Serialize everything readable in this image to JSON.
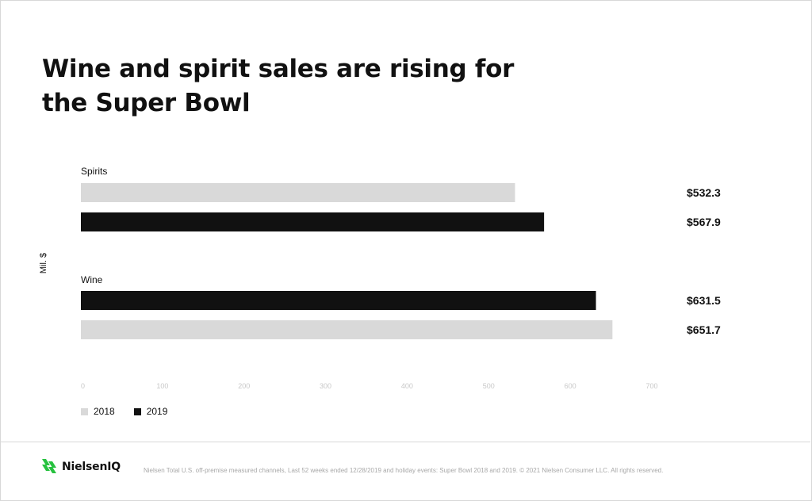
{
  "title": "Wine and spirit sales are rising for the Super Bowl",
  "y_axis_label": "Mil. $",
  "colors": {
    "2018": "#d9d9d9",
    "2019": "#111111",
    "tick_label": "#c8c8c8",
    "logo_green": "#27c13f"
  },
  "chart_data": {
    "type": "bar",
    "orientation": "horizontal",
    "title": "Wine and spirit sales are rising for the Super Bowl",
    "ylabel": "Mil. $",
    "xlim": [
      0,
      700
    ],
    "ticks": [
      0,
      100,
      200,
      300,
      400,
      500,
      600,
      700
    ],
    "grid": false,
    "legend": "bottom-left",
    "groups": [
      {
        "category": "Spirits",
        "bars": [
          {
            "series": "2018",
            "value": 532.3,
            "label": "$532.3"
          },
          {
            "series": "2019",
            "value": 567.9,
            "label": "$567.9"
          }
        ]
      },
      {
        "category": "Wine",
        "bars": [
          {
            "series": "2019",
            "value": 631.5,
            "label": "$631.5"
          },
          {
            "series": "2018",
            "value": 651.7,
            "label": "$651.7"
          }
        ]
      }
    ],
    "series": [
      {
        "name": "2018"
      },
      {
        "name": "2019"
      }
    ]
  },
  "legend": {
    "items": [
      {
        "label": "2018"
      },
      {
        "label": "2019"
      }
    ]
  },
  "footer": {
    "logo_text": "NielsenIQ",
    "note": "Nielsen Total U.S. off-premise measured channels, Last 52 weeks ended 12/28/2019 and holiday events: Super Bowl 2018 and 2019. © 2021 Nielsen Consumer LLC. All rights reserved."
  }
}
